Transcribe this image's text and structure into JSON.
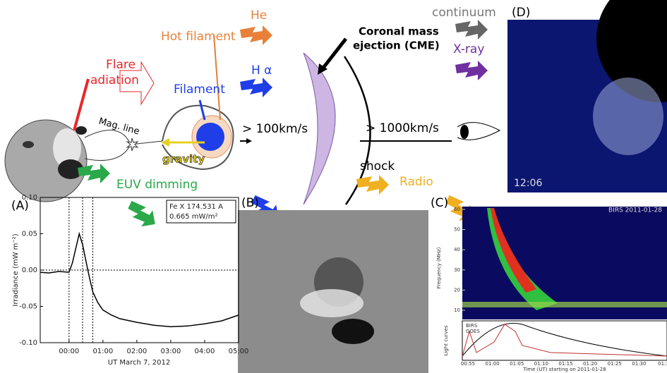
{
  "diagram": {
    "flare_1": "Flare",
    "flare_2": "adiation",
    "he": "He",
    "hot_filament": "Hot filament",
    "h_alpha": "H α",
    "filament": "Filament",
    "mag_line": "Mag. line",
    "gravity": "gravity",
    "speed_1": "> 100km/s",
    "cme_1": "Coronal mass",
    "cme_2": "ejection (CME)",
    "speed_2": "> 1000km/s",
    "shock": "shock",
    "radio": "Radio",
    "euv": "EUV dimming",
    "continuum": "continuum",
    "xray": "X-ray"
  },
  "panel_labels": [
    "(A)",
    "(B)",
    "(C)",
    "(D)"
  ],
  "panel_a": {
    "ylabel": "Irradiance (mW m⁻²)",
    "xlabel": "UT March 7, 2012",
    "legend_1": "Fe X  174.531 A",
    "legend_2": "0.665  mW/m²",
    "xlim": [
      -0.85,
      5.0
    ],
    "ylim": [
      -0.1,
      0.1
    ],
    "xticks": [
      {
        "value": 0,
        "label": "00:00"
      },
      {
        "value": 1,
        "label": "01:00"
      },
      {
        "value": 2,
        "label": "02:00"
      },
      {
        "value": 3,
        "label": "03:00"
      },
      {
        "value": 4,
        "label": "04:00"
      },
      {
        "value": 5,
        "label": "05:00"
      }
    ],
    "yticks": [
      {
        "value": -0.1,
        "label": "-0.10"
      },
      {
        "value": -0.05,
        "label": "-0.05"
      },
      {
        "value": 0,
        "label": "0.00"
      },
      {
        "value": 0.05,
        "label": "0.05"
      },
      {
        "value": 0.1,
        "label": "0.10"
      }
    ],
    "vlines": [
      0,
      0.4,
      0.7
    ],
    "x": [
      -0.85,
      -0.6,
      -0.3,
      0,
      0.1,
      0.2,
      0.3,
      0.4,
      0.5,
      0.6,
      0.7,
      0.85,
      1.0,
      1.25,
      1.5,
      2.0,
      2.5,
      3.0,
      3.5,
      4.0,
      4.5,
      5.0
    ],
    "y": [
      -0.003,
      -0.004,
      -0.002,
      -0.003,
      0.01,
      0.03,
      0.05,
      0.035,
      0.012,
      -0.01,
      -0.03,
      -0.045,
      -0.055,
      -0.062,
      -0.067,
      -0.072,
      -0.076,
      -0.078,
      -0.077,
      -0.074,
      -0.07,
      -0.062
    ]
  },
  "panel_c": {
    "title": "BIRS 2011-01-28",
    "ylabel": "Frequency (MHz)",
    "lower_label": "Light curves",
    "legend": [
      "BIRS",
      "GOES"
    ],
    "xlabel": "Time (UT) starting on 2011-01-28",
    "yticks": [
      10,
      20,
      30,
      40,
      50,
      60
    ],
    "xticks": [
      "00:55",
      "01:00",
      "01:05",
      "01:10",
      "01:15",
      "01:20",
      "01:25",
      "01:30",
      "01:3"
    ]
  },
  "panel_d": {
    "time": "12:06"
  }
}
